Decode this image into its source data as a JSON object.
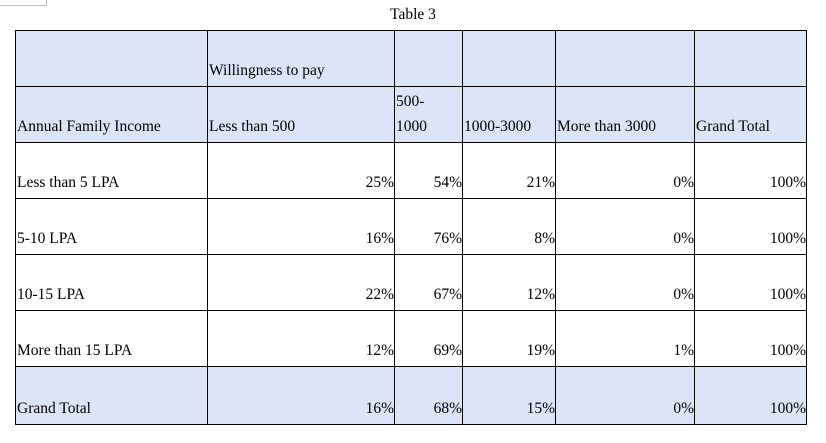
{
  "title": "Table 3",
  "table": {
    "group_label": "Willingness to pay",
    "columns": [
      "Annual Family Income",
      "Less than 500",
      "500-1000",
      "1000-3000",
      "More than 3000",
      "Grand Total"
    ],
    "rows": [
      [
        "Less than 5 LPA",
        "25%",
        "54%",
        "21%",
        "0%",
        "100%"
      ],
      [
        "5-10 LPA",
        "16%",
        "76%",
        "8%",
        "0%",
        "100%"
      ],
      [
        "10-15 LPA",
        "22%",
        "67%",
        "12%",
        "0%",
        "100%"
      ],
      [
        "More than 15 LPA",
        "12%",
        "69%",
        "19%",
        "1%",
        "100%"
      ],
      [
        "Grand Total",
        "16%",
        "68%",
        "15%",
        "0%",
        "100%"
      ]
    ]
  }
}
